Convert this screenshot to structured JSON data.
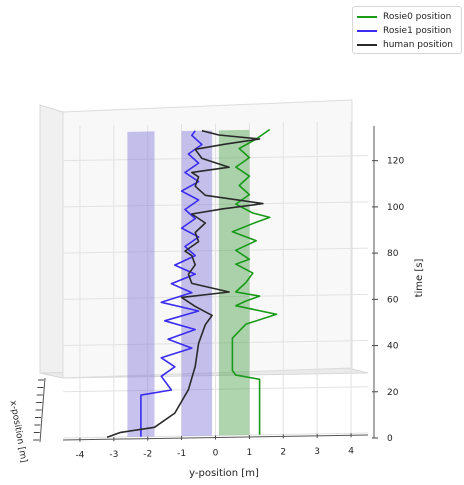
{
  "chart_data": {
    "type": "line",
    "projection": "3d",
    "title": "",
    "xlabel": "y-position [m]",
    "zlabel": "x-position [m]",
    "ylabel": "time [s]",
    "y_ticks": [
      "-4",
      "-3",
      "-2",
      "-1",
      "0",
      "1",
      "2",
      "3",
      "4"
    ],
    "time_ticks": [
      "0",
      "20",
      "40",
      "60",
      "80",
      "100",
      "120"
    ],
    "ylim": [
      -4.5,
      4.5
    ],
    "tlim": [
      0,
      135
    ],
    "legend_position": "top-right",
    "grid": true,
    "series": [
      {
        "name": "Rosie0 position",
        "color": "#1a9a1a",
        "t": [
          0,
          2,
          10,
          20,
          24,
          26,
          28,
          34,
          42,
          48,
          52,
          54,
          56,
          58,
          60,
          62,
          66,
          70,
          74,
          76,
          80,
          84,
          88,
          92,
          94,
          96,
          100,
          104,
          108,
          112,
          116,
          120,
          124,
          128,
          132
        ],
        "y": [
          1.3,
          1.3,
          1.3,
          1.3,
          1.3,
          0.6,
          0.5,
          0.5,
          0.5,
          0.9,
          1.8,
          1.2,
          0.6,
          0.9,
          1.3,
          0.6,
          0.9,
          1.1,
          0.6,
          1.0,
          0.6,
          1.2,
          0.5,
          1.2,
          1.6,
          1.1,
          0.6,
          1.0,
          0.7,
          1.0,
          0.6,
          1.0,
          0.7,
          1.2,
          1.6
        ]
      },
      {
        "name": "Rosie1 position",
        "color": "#3a2cf0",
        "t": [
          0,
          2,
          10,
          18,
          20,
          26,
          30,
          34,
          38,
          42,
          46,
          50,
          54,
          58,
          62,
          66,
          70,
          74,
          78,
          82,
          86,
          90,
          94,
          98,
          102,
          106,
          110,
          114,
          118,
          122,
          126,
          130,
          132
        ],
        "y": [
          -2.2,
          -2.2,
          -2.2,
          -2.2,
          -1.3,
          -1.6,
          -1.2,
          -1.6,
          -0.7,
          -1.4,
          -0.6,
          -1.5,
          -0.5,
          -1.6,
          -0.7,
          -1.3,
          -0.6,
          -1.2,
          -0.6,
          -0.9,
          -0.5,
          -1.0,
          -0.6,
          -0.9,
          -0.5,
          -1.0,
          -0.5,
          -0.9,
          -0.5,
          -0.8,
          -0.4,
          -0.7,
          -0.6
        ]
      },
      {
        "name": "human position",
        "color": "#2a2a2a",
        "t": [
          0,
          2,
          4,
          10,
          20,
          30,
          40,
          48,
          52,
          56,
          60,
          62,
          66,
          70,
          74,
          78,
          80,
          84,
          88,
          92,
          96,
          98,
          100,
          104,
          108,
          112,
          114,
          116,
          120,
          124,
          126,
          128,
          130,
          132
        ],
        "y": [
          -3.2,
          -2.8,
          -1.8,
          -1.2,
          -0.8,
          -0.6,
          -0.5,
          -0.3,
          -0.1,
          -0.6,
          -1.0,
          0.4,
          -0.7,
          -0.8,
          -0.6,
          -0.7,
          -0.9,
          -0.5,
          -0.6,
          -0.3,
          -0.7,
          0.2,
          1.4,
          -0.3,
          -0.6,
          -0.5,
          -0.7,
          0.4,
          -0.4,
          -0.6,
          0.3,
          1.3,
          0.1,
          -0.4
        ]
      }
    ],
    "shaded_regions": [
      {
        "color": "#7b6fd6",
        "y_range": [
          -2.6,
          -1.8
        ],
        "t_range": [
          0,
          132
        ]
      },
      {
        "color": "#7b6fd6",
        "y_range": [
          -1.0,
          -0.1
        ],
        "t_range": [
          0,
          132
        ]
      },
      {
        "color": "#3f9a3f",
        "y_range": [
          0.1,
          1.0
        ],
        "t_range": [
          0,
          132
        ]
      }
    ]
  },
  "legend": {
    "items": [
      {
        "label": "Rosie0 position",
        "color": "#1a9a1a"
      },
      {
        "label": "Rosie1 position",
        "color": "#3a2cf0"
      },
      {
        "label": "human position",
        "color": "#2a2a2a"
      }
    ]
  }
}
